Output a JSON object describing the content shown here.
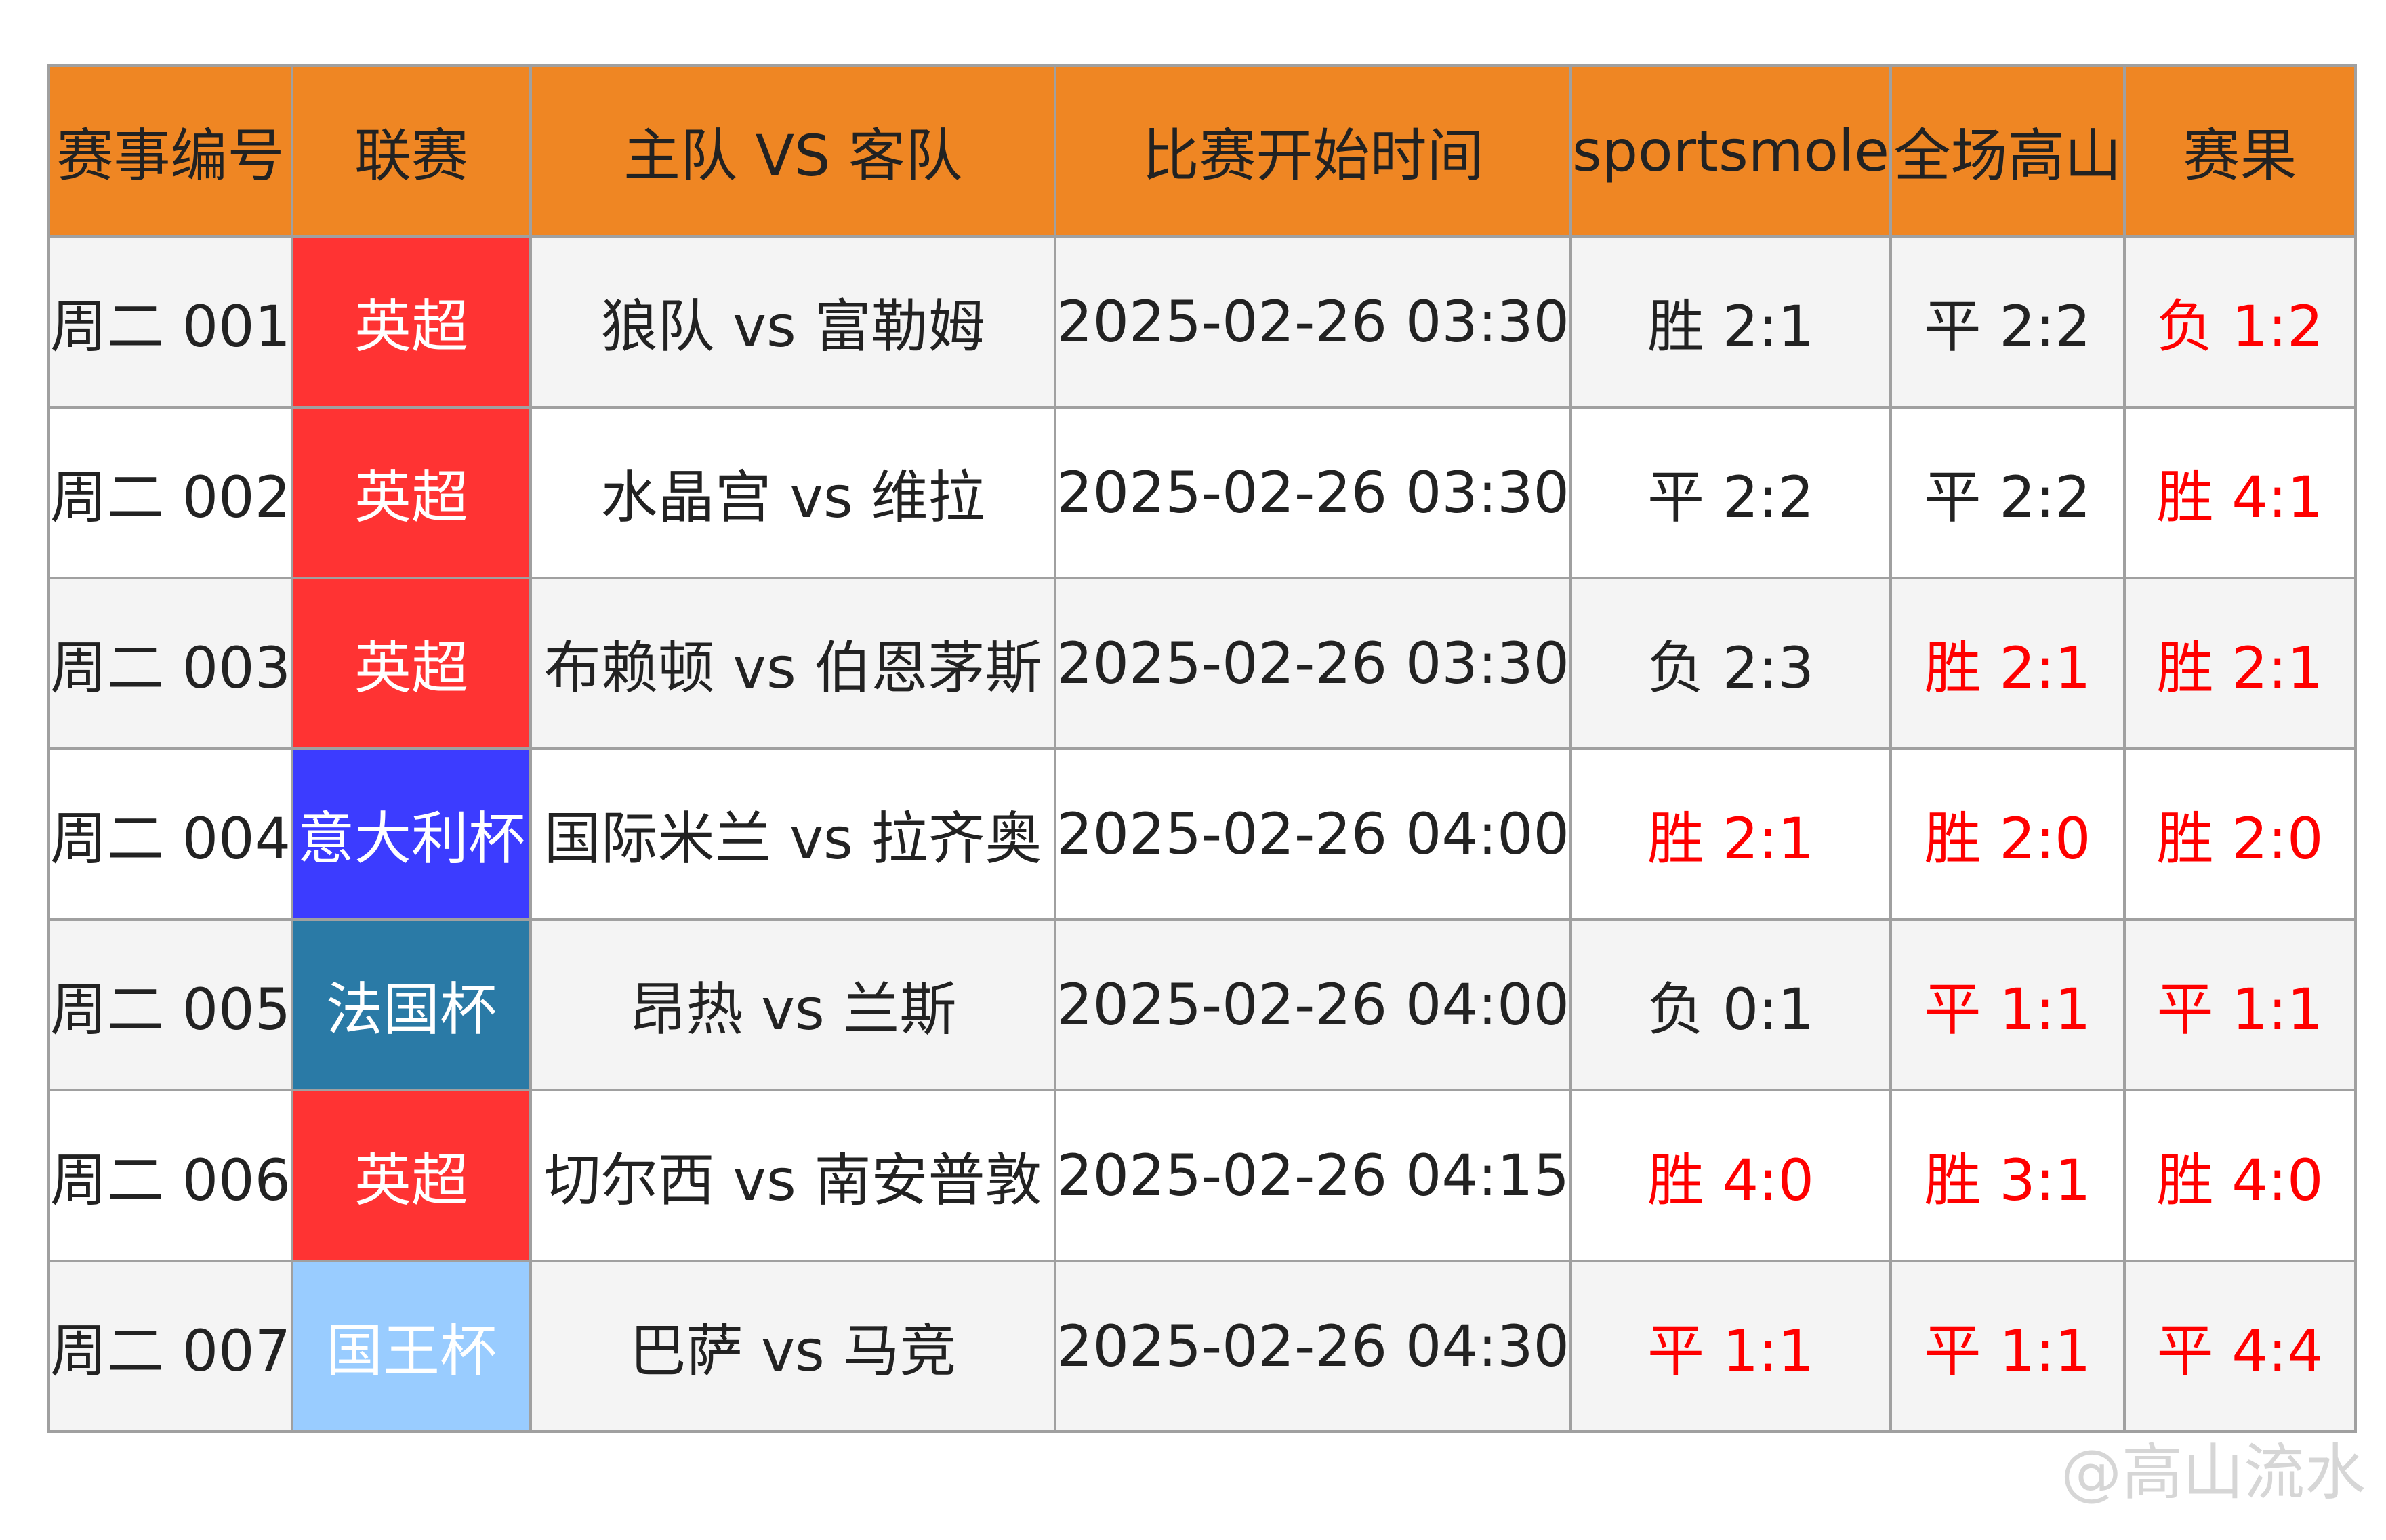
{
  "headers": [
    "赛事编号",
    "联赛",
    "主队 VS 客队",
    "比赛开始时间",
    "sportsmole",
    "全场高山",
    "赛果"
  ],
  "colors": {
    "header": "#ef8623",
    "red_text": "#ff0000",
    "英超": "#ff3333",
    "意大利杯": "#3c3cff",
    "法国杯": "#2a7aa6",
    "国王杯": "#99ccff"
  },
  "rows": [
    {
      "id": "周二 001",
      "league": "英超",
      "league_color": "#ff3333",
      "match": "狼队 vs 富勒姆",
      "time": "2025-02-26 03:30",
      "sportsmole": "胜 2:1",
      "sm_red": false,
      "gaoshan": "平 2:2",
      "gs_red": false,
      "result": "负 1:2"
    },
    {
      "id": "周二 002",
      "league": "英超",
      "league_color": "#ff3333",
      "match": "水晶宫 vs 维拉",
      "time": "2025-02-26 03:30",
      "sportsmole": "平 2:2",
      "sm_red": false,
      "gaoshan": "平 2:2",
      "gs_red": false,
      "result": "胜 4:1"
    },
    {
      "id": "周二 003",
      "league": "英超",
      "league_color": "#ff3333",
      "match": "布赖顿 vs 伯恩茅斯",
      "time": "2025-02-26 03:30",
      "sportsmole": "负 2:3",
      "sm_red": false,
      "gaoshan": "胜 2:1",
      "gs_red": true,
      "result": "胜 2:1"
    },
    {
      "id": "周二 004",
      "league": "意大利杯",
      "league_color": "#3c3cff",
      "match": "国际米兰 vs 拉齐奥",
      "time": "2025-02-26 04:00",
      "sportsmole": "胜 2:1",
      "sm_red": true,
      "gaoshan": "胜 2:0",
      "gs_red": true,
      "result": "胜 2:0"
    },
    {
      "id": "周二 005",
      "league": "法国杯",
      "league_color": "#2a7aa6",
      "match": "昂热 vs 兰斯",
      "time": "2025-02-26 04:00",
      "sportsmole": "负 0:1",
      "sm_red": false,
      "gaoshan": "平 1:1",
      "gs_red": true,
      "result": "平 1:1"
    },
    {
      "id": "周二 006",
      "league": "英超",
      "league_color": "#ff3333",
      "match": "切尔西 vs 南安普敦",
      "time": "2025-02-26 04:15",
      "sportsmole": "胜 4:0",
      "sm_red": true,
      "gaoshan": "胜 3:1",
      "gs_red": true,
      "result": "胜 4:0"
    },
    {
      "id": "周二 007",
      "league": "国王杯",
      "league_color": "#99ccff",
      "match": "巴萨 vs 马竞",
      "time": "2025-02-26 04:30",
      "sportsmole": "平 1:1",
      "sm_red": true,
      "gaoshan": "平 1:1",
      "gs_red": true,
      "result": "平 4:4"
    }
  ],
  "watermark": "@高山流水"
}
